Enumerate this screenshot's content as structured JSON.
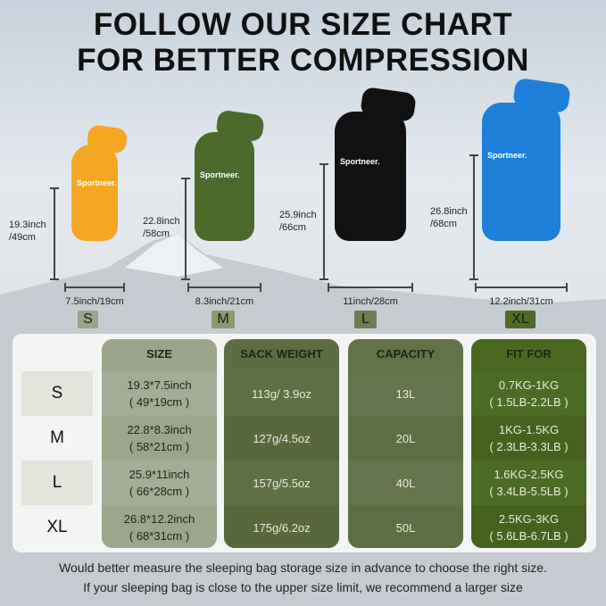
{
  "title": {
    "line1": "FOLLOW OUR SIZE CHART",
    "line2": "FOR BETTER COMPRESSION"
  },
  "brand": "Sportneer.",
  "bags": [
    {
      "size": "S",
      "height": "19.3inch",
      "height_cm": "/49cm",
      "width": "7.5inch/19cm",
      "color": "#f5a623",
      "badge_color": "#9aa68c"
    },
    {
      "size": "M",
      "height": "22.8inch",
      "height_cm": "/58cm",
      "width": "8.3inch/21cm",
      "color": "#4b6a2b",
      "badge_color": "#8a9a70"
    },
    {
      "size": "L",
      "height": "25.9inch",
      "height_cm": "/66cm",
      "width": "11inch/28cm",
      "color": "#111111",
      "badge_color": "#6c7d50"
    },
    {
      "size": "XL",
      "height": "26.8inch",
      "height_cm": "/68cm",
      "width": "12.2inch/31cm",
      "color": "#1e7fd8",
      "badge_color": "#4f6a26"
    }
  ],
  "table": {
    "headers": [
      "SIZE",
      "SACK WEIGHT",
      "CAPACITY",
      "FIT FOR"
    ],
    "rows": [
      {
        "label": "S",
        "size": [
          "19.3*7.5inch",
          "( 49*19cm )"
        ],
        "weight": "113g/ 3.9oz",
        "capacity": "13L",
        "fit": [
          "0.7KG-1KG",
          "( 1.5LB-2.2LB )"
        ]
      },
      {
        "label": "M",
        "size": [
          "22.8*8.3inch",
          "( 58*21cm )"
        ],
        "weight": "127g/4.5oz",
        "capacity": "20L",
        "fit": [
          "1KG-1.5KG",
          "( 2.3LB-3.3LB )"
        ]
      },
      {
        "label": "L",
        "size": [
          "25.9*11inch",
          "( 66*28cm )"
        ],
        "weight": "157g/5.5oz",
        "capacity": "40L",
        "fit": [
          "1.6KG-2.5KG",
          "( 3.4LB-5.5LB )"
        ]
      },
      {
        "label": "XL",
        "size": [
          "26.8*12.2inch",
          "( 68*31cm )"
        ],
        "weight": "175g/6.2oz",
        "capacity": "50L",
        "fit": [
          "2.5KG-3KG",
          "( 5.6LB-6.7LB )"
        ]
      }
    ]
  },
  "footer": {
    "line1": "Would better measure the sleeping bag storage size in advance to choose the right size.",
    "line2": "If your sleeping bag is close to the upper size limit, we recommend a larger size"
  }
}
